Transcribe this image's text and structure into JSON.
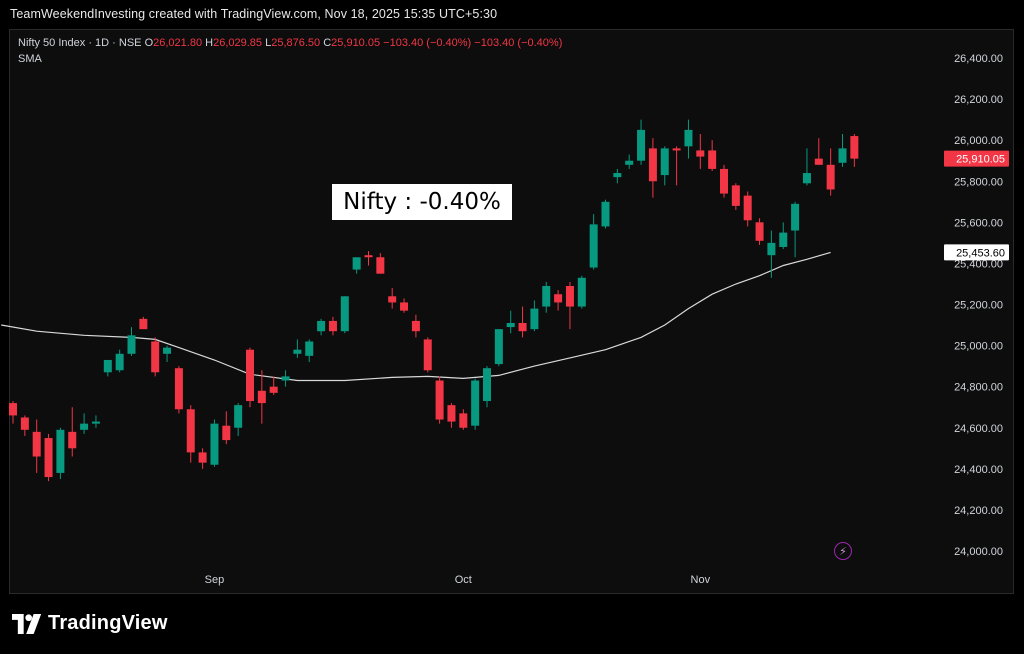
{
  "header": {
    "credit": "TeamWeekendInvesting created with TradingView.com, Nov 18, 2025 15:35 UTC+5:30"
  },
  "legend": {
    "symbol": "Nifty 50 Index · 1D · NSE",
    "o_label": "O",
    "o_value": "26,021.80",
    "h_label": "H",
    "h_value": "26,029.85",
    "l_label": "L",
    "l_value": "25,876.50",
    "c_label": "C",
    "c_value": "25,910.05",
    "change": "−103.40 (−0.40%)",
    "change2": "−103.40 (−0.40%)",
    "indicator": "SMA"
  },
  "annotation": {
    "text": "Nifty : -0.40%"
  },
  "brand": {
    "name": "TradingView",
    "logo": "tradingview-logo-icon"
  },
  "price_tag": {
    "value": "25,910.05",
    "color": "#f23645"
  },
  "sma_tag": {
    "value": "25,453.60"
  },
  "colors": {
    "up": "#089981",
    "down": "#f23645",
    "sma": "#d9d9d9",
    "grid": "#0d0d0d"
  },
  "chart_data": {
    "type": "candlestick",
    "y_ticks": [
      24000,
      24200,
      24400,
      24600,
      24800,
      25000,
      25200,
      25400,
      25600,
      25800,
      26000,
      26200,
      26400
    ],
    "y_tick_labels": [
      "24,000.00",
      "24,200.00",
      "24,400.00",
      "24,600.00",
      "24,800.00",
      "25,000.00",
      "25,200.00",
      "25,400.00",
      "25,600.00",
      "25,800.00",
      "26,000.00",
      "26,200.00",
      "26,400.00"
    ],
    "ylim": [
      23900,
      26580
    ],
    "x_labels": [
      {
        "label": "Sep",
        "index": 17
      },
      {
        "label": "Oct",
        "index": 38
      },
      {
        "label": "Nov",
        "index": 58
      }
    ],
    "candles": [
      {
        "o": 24720,
        "h": 24730,
        "l": 24620,
        "c": 24660
      },
      {
        "o": 24650,
        "h": 24660,
        "l": 24560,
        "c": 24590
      },
      {
        "o": 24580,
        "h": 24640,
        "l": 24380,
        "c": 24460
      },
      {
        "o": 24550,
        "h": 24570,
        "l": 24340,
        "c": 24360
      },
      {
        "o": 24380,
        "h": 24600,
        "l": 24350,
        "c": 24590
      },
      {
        "o": 24580,
        "h": 24700,
        "l": 24460,
        "c": 24500
      },
      {
        "o": 24590,
        "h": 24670,
        "l": 24570,
        "c": 24620
      },
      {
        "o": 24620,
        "h": 24660,
        "l": 24600,
        "c": 24630
      },
      {
        "o": 24870,
        "h": 24920,
        "l": 24850,
        "c": 24930
      },
      {
        "o": 24880,
        "h": 24980,
        "l": 24870,
        "c": 24960
      },
      {
        "o": 24960,
        "h": 25090,
        "l": 24950,
        "c": 25050
      },
      {
        "o": 25130,
        "h": 25140,
        "l": 25080,
        "c": 25080
      },
      {
        "o": 25020,
        "h": 25040,
        "l": 24850,
        "c": 24870
      },
      {
        "o": 24960,
        "h": 25000,
        "l": 24920,
        "c": 24990
      },
      {
        "o": 24890,
        "h": 24900,
        "l": 24670,
        "c": 24690
      },
      {
        "o": 24690,
        "h": 24710,
        "l": 24430,
        "c": 24480
      },
      {
        "o": 24480,
        "h": 24500,
        "l": 24400,
        "c": 24430
      },
      {
        "o": 24420,
        "h": 24640,
        "l": 24410,
        "c": 24620
      },
      {
        "o": 24610,
        "h": 24680,
        "l": 24520,
        "c": 24540
      },
      {
        "o": 24600,
        "h": 24720,
        "l": 24560,
        "c": 24710
      },
      {
        "o": 24980,
        "h": 24990,
        "l": 24700,
        "c": 24730
      },
      {
        "o": 24780,
        "h": 24880,
        "l": 24620,
        "c": 24720
      },
      {
        "o": 24800,
        "h": 24850,
        "l": 24760,
        "c": 24770
      },
      {
        "o": 24830,
        "h": 24880,
        "l": 24800,
        "c": 24850
      },
      {
        "o": 24960,
        "h": 25030,
        "l": 24940,
        "c": 24980
      },
      {
        "o": 24950,
        "h": 25030,
        "l": 24920,
        "c": 25020
      },
      {
        "o": 25070,
        "h": 25130,
        "l": 25050,
        "c": 25120
      },
      {
        "o": 25120,
        "h": 25140,
        "l": 25050,
        "c": 25070
      },
      {
        "o": 25070,
        "h": 25240,
        "l": 25060,
        "c": 25240
      },
      {
        "o": 25370,
        "h": 25420,
        "l": 25350,
        "c": 25430
      },
      {
        "o": 25440,
        "h": 25460,
        "l": 25390,
        "c": 25430
      },
      {
        "o": 25430,
        "h": 25450,
        "l": 25350,
        "c": 25350
      },
      {
        "o": 25240,
        "h": 25280,
        "l": 25180,
        "c": 25210
      },
      {
        "o": 25210,
        "h": 25230,
        "l": 25160,
        "c": 25170
      },
      {
        "o": 25120,
        "h": 25150,
        "l": 25040,
        "c": 25070
      },
      {
        "o": 25030,
        "h": 25040,
        "l": 24870,
        "c": 24880
      },
      {
        "o": 24830,
        "h": 24850,
        "l": 24620,
        "c": 24640
      },
      {
        "o": 24710,
        "h": 24720,
        "l": 24600,
        "c": 24630
      },
      {
        "o": 24670,
        "h": 24690,
        "l": 24590,
        "c": 24600
      },
      {
        "o": 24610,
        "h": 24840,
        "l": 24590,
        "c": 24830
      },
      {
        "o": 24730,
        "h": 24900,
        "l": 24700,
        "c": 24890
      },
      {
        "o": 24910,
        "h": 25080,
        "l": 24900,
        "c": 25080
      },
      {
        "o": 25090,
        "h": 25170,
        "l": 25060,
        "c": 25110
      },
      {
        "o": 25110,
        "h": 25190,
        "l": 25040,
        "c": 25070
      },
      {
        "o": 25080,
        "h": 25220,
        "l": 25070,
        "c": 25180
      },
      {
        "o": 25190,
        "h": 25310,
        "l": 25160,
        "c": 25290
      },
      {
        "o": 25250,
        "h": 25270,
        "l": 25170,
        "c": 25210
      },
      {
        "o": 25290,
        "h": 25310,
        "l": 25080,
        "c": 25190
      },
      {
        "o": 25190,
        "h": 25340,
        "l": 25180,
        "c": 25330
      },
      {
        "o": 25380,
        "h": 25640,
        "l": 25370,
        "c": 25590
      },
      {
        "o": 25580,
        "h": 25710,
        "l": 25570,
        "c": 25700
      },
      {
        "o": 25820,
        "h": 25860,
        "l": 25790,
        "c": 25840
      },
      {
        "o": 25880,
        "h": 25930,
        "l": 25860,
        "c": 25900
      },
      {
        "o": 25900,
        "h": 26100,
        "l": 25880,
        "c": 26050
      },
      {
        "o": 25960,
        "h": 26010,
        "l": 25720,
        "c": 25800
      },
      {
        "o": 25830,
        "h": 25970,
        "l": 25780,
        "c": 25960
      },
      {
        "o": 25960,
        "h": 25970,
        "l": 25780,
        "c": 25950
      },
      {
        "o": 25970,
        "h": 26100,
        "l": 25910,
        "c": 26050
      },
      {
        "o": 25950,
        "h": 26030,
        "l": 25860,
        "c": 25920
      },
      {
        "o": 25950,
        "h": 26000,
        "l": 25850,
        "c": 25860
      },
      {
        "o": 25860,
        "h": 25880,
        "l": 25720,
        "c": 25740
      },
      {
        "o": 25780,
        "h": 25790,
        "l": 25660,
        "c": 25680
      },
      {
        "o": 25730,
        "h": 25750,
        "l": 25580,
        "c": 25610
      },
      {
        "o": 25600,
        "h": 25620,
        "l": 25490,
        "c": 25510
      },
      {
        "o": 25440,
        "h": 25560,
        "l": 25330,
        "c": 25500
      },
      {
        "o": 25480,
        "h": 25600,
        "l": 25470,
        "c": 25550
      },
      {
        "o": 25560,
        "h": 25700,
        "l": 25430,
        "c": 25690
      },
      {
        "o": 25790,
        "h": 25960,
        "l": 25780,
        "c": 25840
      },
      {
        "o": 25910,
        "h": 26010,
        "l": 25880,
        "c": 25880
      },
      {
        "o": 25880,
        "h": 25960,
        "l": 25730,
        "c": 25760
      },
      {
        "o": 25890,
        "h": 26030,
        "l": 25870,
        "c": 25960
      },
      {
        "o": 26020,
        "h": 26030,
        "l": 25870,
        "c": 25910
      }
    ],
    "sma": [
      {
        "i": -1,
        "v": 25100
      },
      {
        "i": 2,
        "v": 25070
      },
      {
        "i": 6,
        "v": 25050
      },
      {
        "i": 10,
        "v": 25040
      },
      {
        "i": 12,
        "v": 25030
      },
      {
        "i": 14,
        "v": 24990
      },
      {
        "i": 17,
        "v": 24930
      },
      {
        "i": 20,
        "v": 24860
      },
      {
        "i": 24,
        "v": 24830
      },
      {
        "i": 28,
        "v": 24830
      },
      {
        "i": 32,
        "v": 24845
      },
      {
        "i": 35,
        "v": 24850
      },
      {
        "i": 38,
        "v": 24840
      },
      {
        "i": 41,
        "v": 24855
      },
      {
        "i": 44,
        "v": 24900
      },
      {
        "i": 47,
        "v": 24940
      },
      {
        "i": 50,
        "v": 24980
      },
      {
        "i": 53,
        "v": 25040
      },
      {
        "i": 55,
        "v": 25100
      },
      {
        "i": 57,
        "v": 25180
      },
      {
        "i": 59,
        "v": 25250
      },
      {
        "i": 61,
        "v": 25300
      },
      {
        "i": 63,
        "v": 25340
      },
      {
        "i": 65,
        "v": 25390
      },
      {
        "i": 67,
        "v": 25420
      },
      {
        "i": 69,
        "v": 25453.6
      }
    ]
  }
}
